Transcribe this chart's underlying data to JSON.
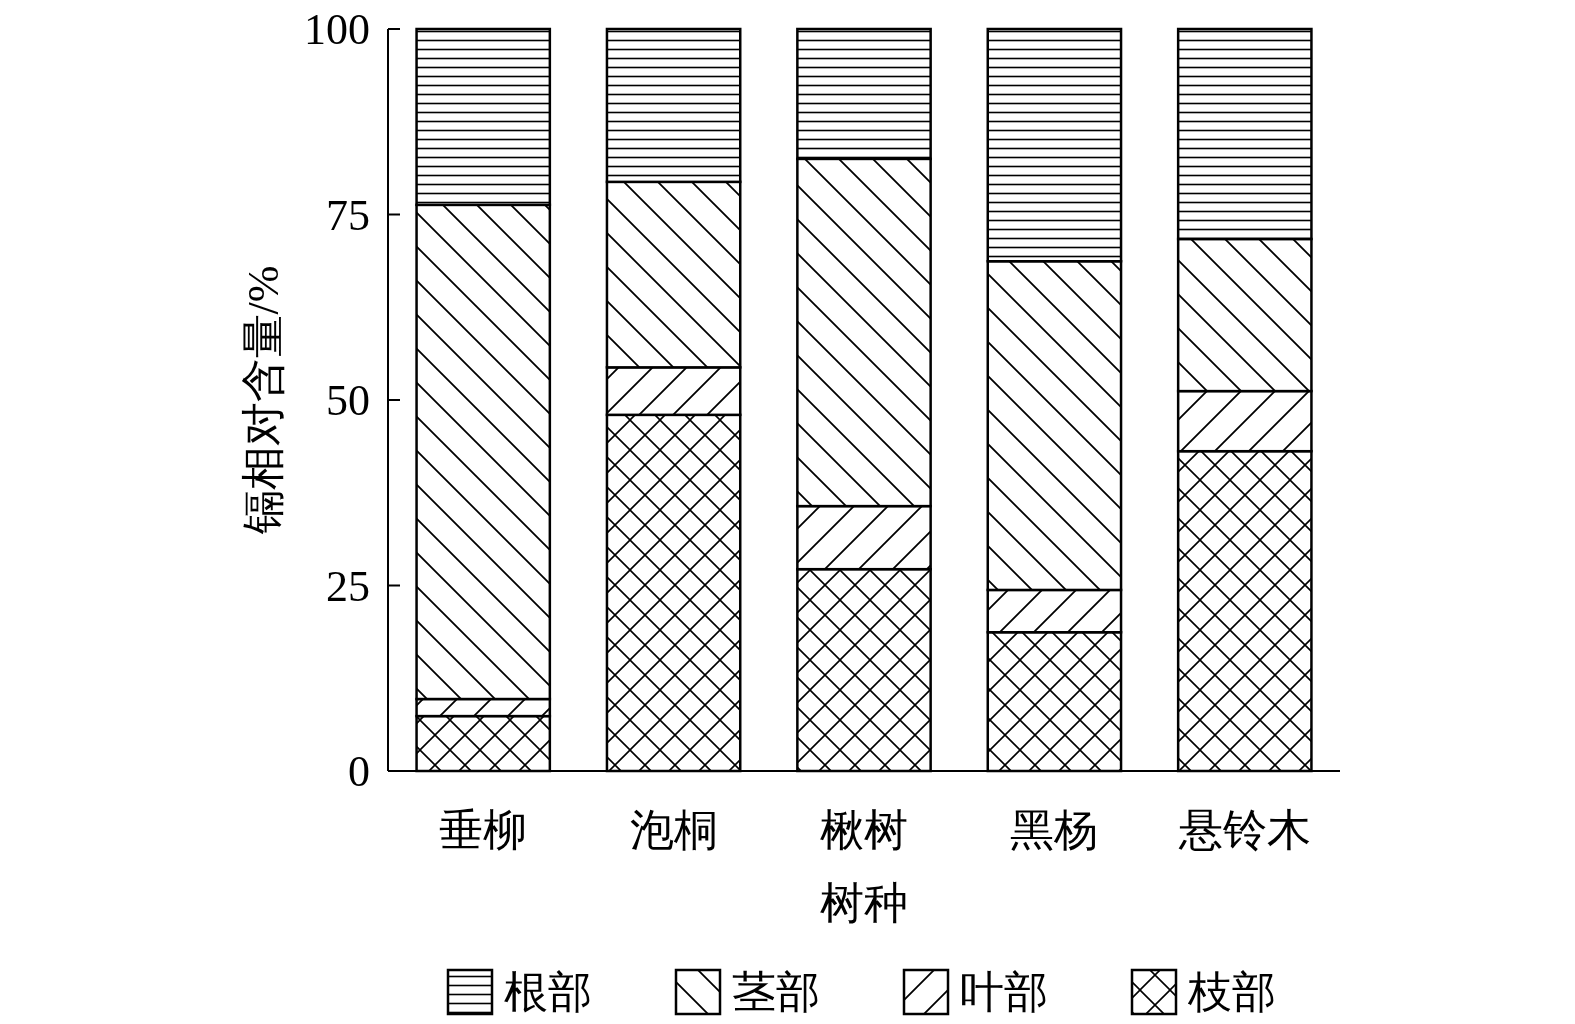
{
  "chart_data": {
    "type": "bar",
    "stacked": true,
    "xlabel": "树种",
    "ylabel": "镉相对含量/%",
    "categories": [
      "垂柳",
      "泡桐",
      "楸树",
      "黑杨",
      "悬铃木"
    ],
    "ylim": [
      0,
      100
    ],
    "yticks": [
      0,
      25,
      50,
      75,
      100
    ],
    "legend": "bottom",
    "series": [
      {
        "name": "枝部",
        "color": "#000000",
        "values": [
          7.4,
          48.0,
          27.2,
          18.7,
          43.1
        ]
      },
      {
        "name": "叶部",
        "color": "#000000",
        "values": [
          2.3,
          6.4,
          8.5,
          5.7,
          8.1
        ]
      },
      {
        "name": "茎部",
        "color": "#000000",
        "values": [
          66.6,
          25.0,
          46.8,
          44.3,
          20.5
        ]
      },
      {
        "name": "根部",
        "color": "#000000",
        "values": [
          23.7,
          20.6,
          17.5,
          31.3,
          28.3
        ]
      }
    ]
  }
}
